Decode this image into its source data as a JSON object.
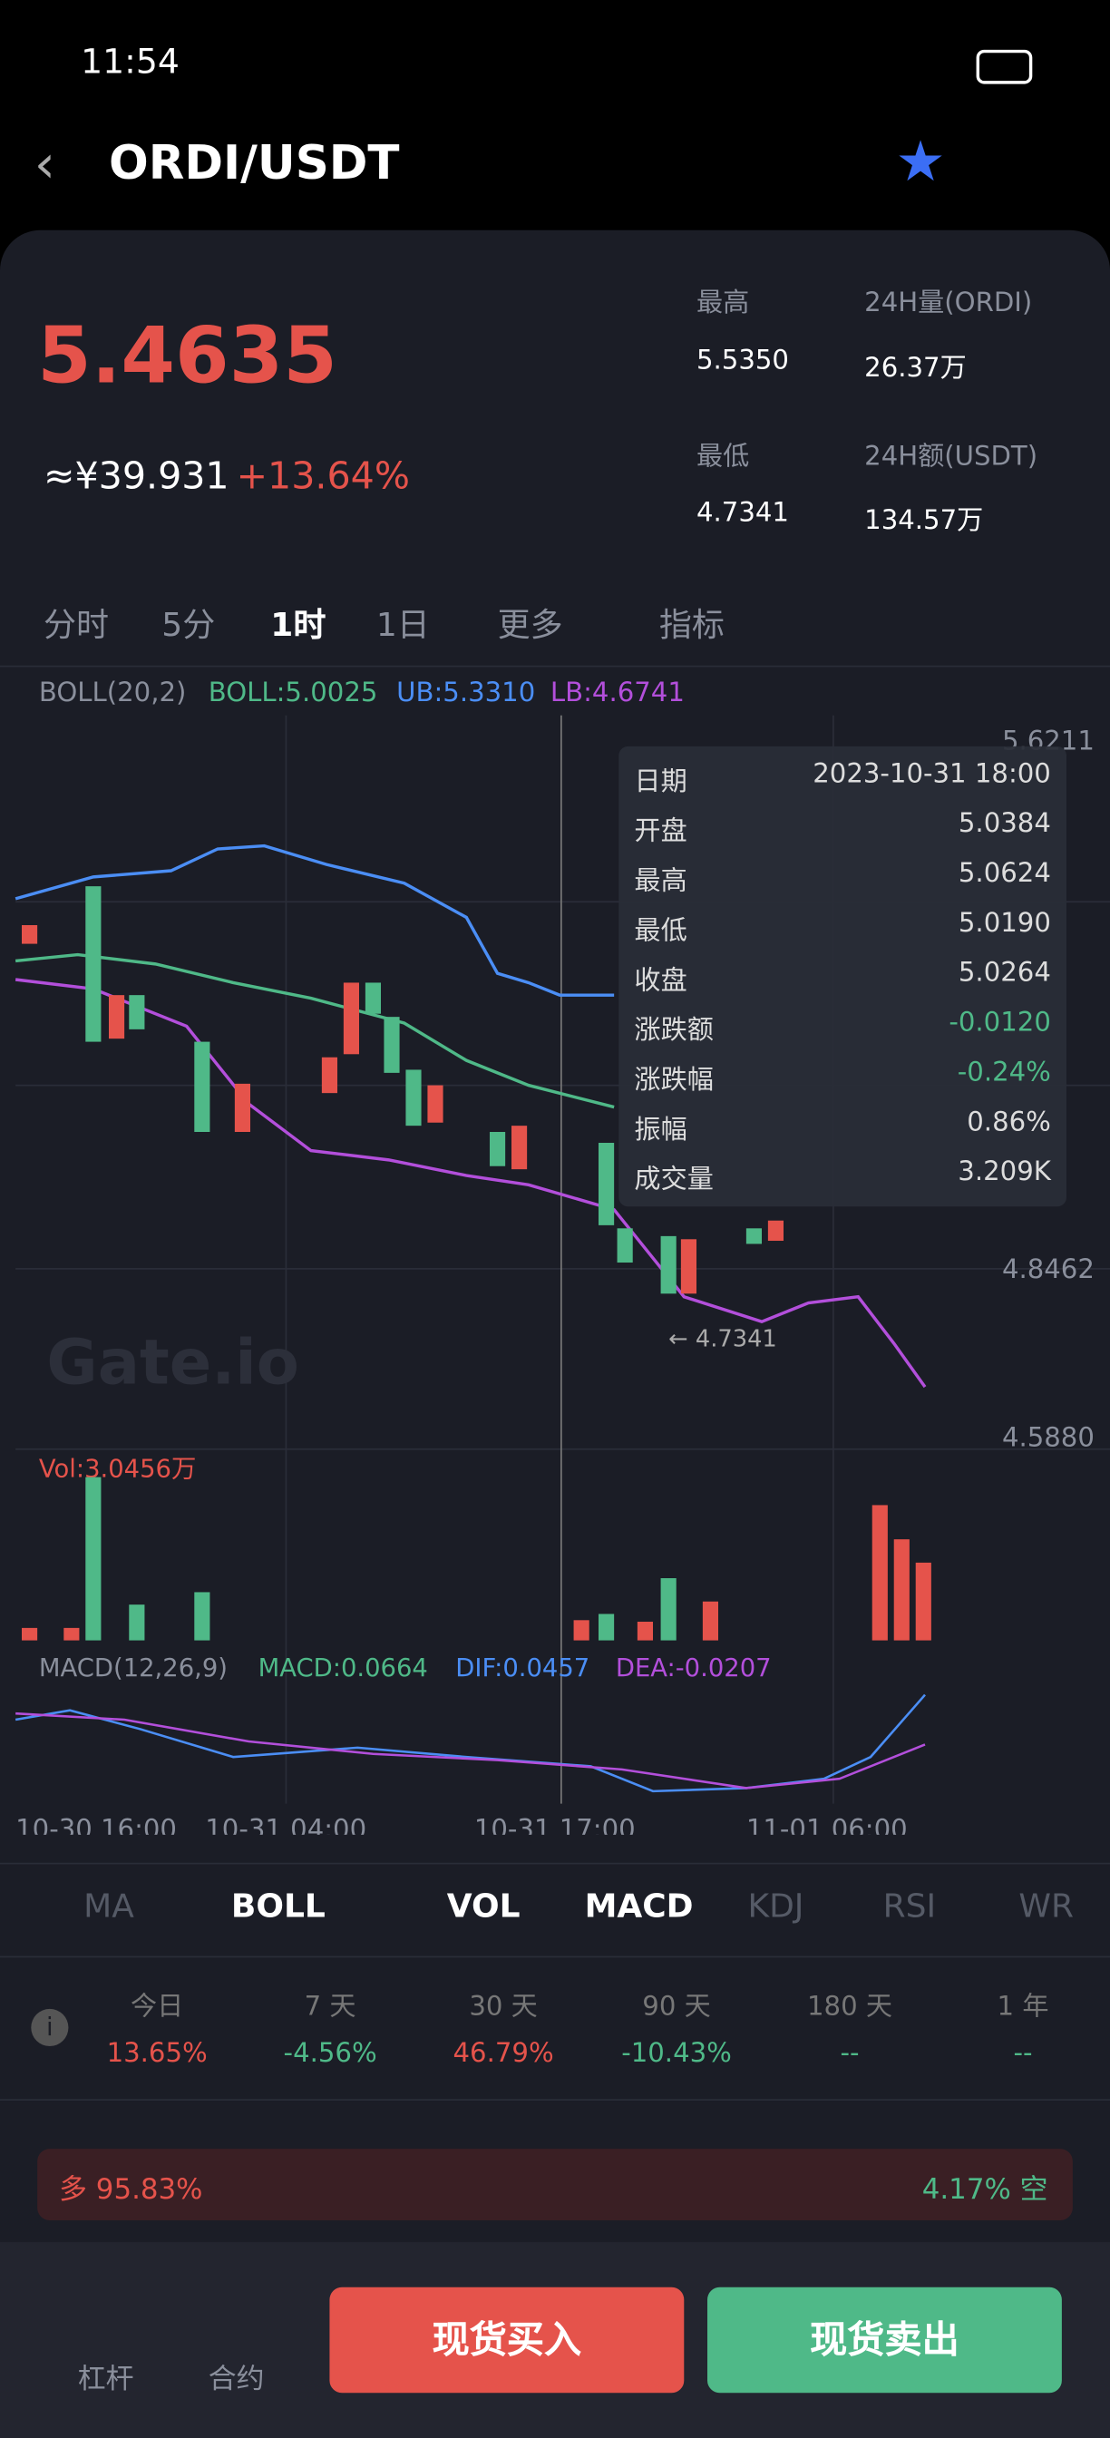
{
  "status_bar": {
    "time": "11:54"
  },
  "header": {
    "title": "ORDI/USDT"
  },
  "ticker": {
    "price": "5.4635",
    "cny": "≈¥39.931",
    "change": "+13.64%",
    "stats": [
      {
        "label": "最高",
        "value": "5.5350"
      },
      {
        "label": "24H量(ORDI)",
        "value": "26.37万"
      },
      {
        "label": "最低",
        "value": "4.7341"
      },
      {
        "label": "24H额(USDT)",
        "value": "134.57万"
      }
    ]
  },
  "period_tabs": [
    "分时",
    "5分",
    "1时",
    "1日",
    "更多",
    "指标"
  ],
  "boll": [
    "BOLL(20,2)",
    "BOLL:5.0025",
    "UB:5.3310",
    "LB:4.6741"
  ],
  "price_axis": [
    "5.6211",
    "4.8462",
    "4.5880"
  ],
  "tooltip": [
    [
      "日期",
      "2023-10-31 18:00"
    ],
    [
      "开盘",
      "5.0384"
    ],
    [
      "最高",
      "5.0624"
    ],
    [
      "最低",
      "5.0190"
    ],
    [
      "收盘",
      "5.0264"
    ],
    [
      "涨跌额",
      "-0.0120"
    ],
    [
      "涨跌幅",
      "-0.24%"
    ],
    [
      "振幅",
      "0.86%"
    ],
    [
      "成交量",
      "3.209K"
    ]
  ],
  "low_marker": "← 4.7341",
  "watermark": "Gate.io",
  "vol_label": "Vol:3.0456万",
  "macd": [
    "MACD(12,26,9)",
    "MACD:0.0664",
    "DIF:0.0457",
    "DEA:-0.0207"
  ],
  "time_axis": [
    "10-30 16:00",
    "10-31 04:00",
    "10-31 17:00",
    "11-01 06:00"
  ],
  "indicator_tabs": [
    "MA",
    "BOLL",
    "VOL",
    "MACD",
    "KDJ",
    "RSI",
    "WR"
  ],
  "performance": [
    [
      "今日",
      "13.65%"
    ],
    [
      "7 天",
      "-4.56%"
    ],
    [
      "30 天",
      "46.79%"
    ],
    [
      "90 天",
      "-10.43%"
    ],
    [
      "180 天",
      "--"
    ],
    [
      "1 年",
      "--"
    ]
  ],
  "sentiment": {
    "long": "多 95.83%",
    "short": "4.17% 空"
  },
  "bottom_nav": {
    "items": [
      "杠杆",
      "合约"
    ],
    "buy": "现货买入",
    "sell": "现货卖出"
  }
}
